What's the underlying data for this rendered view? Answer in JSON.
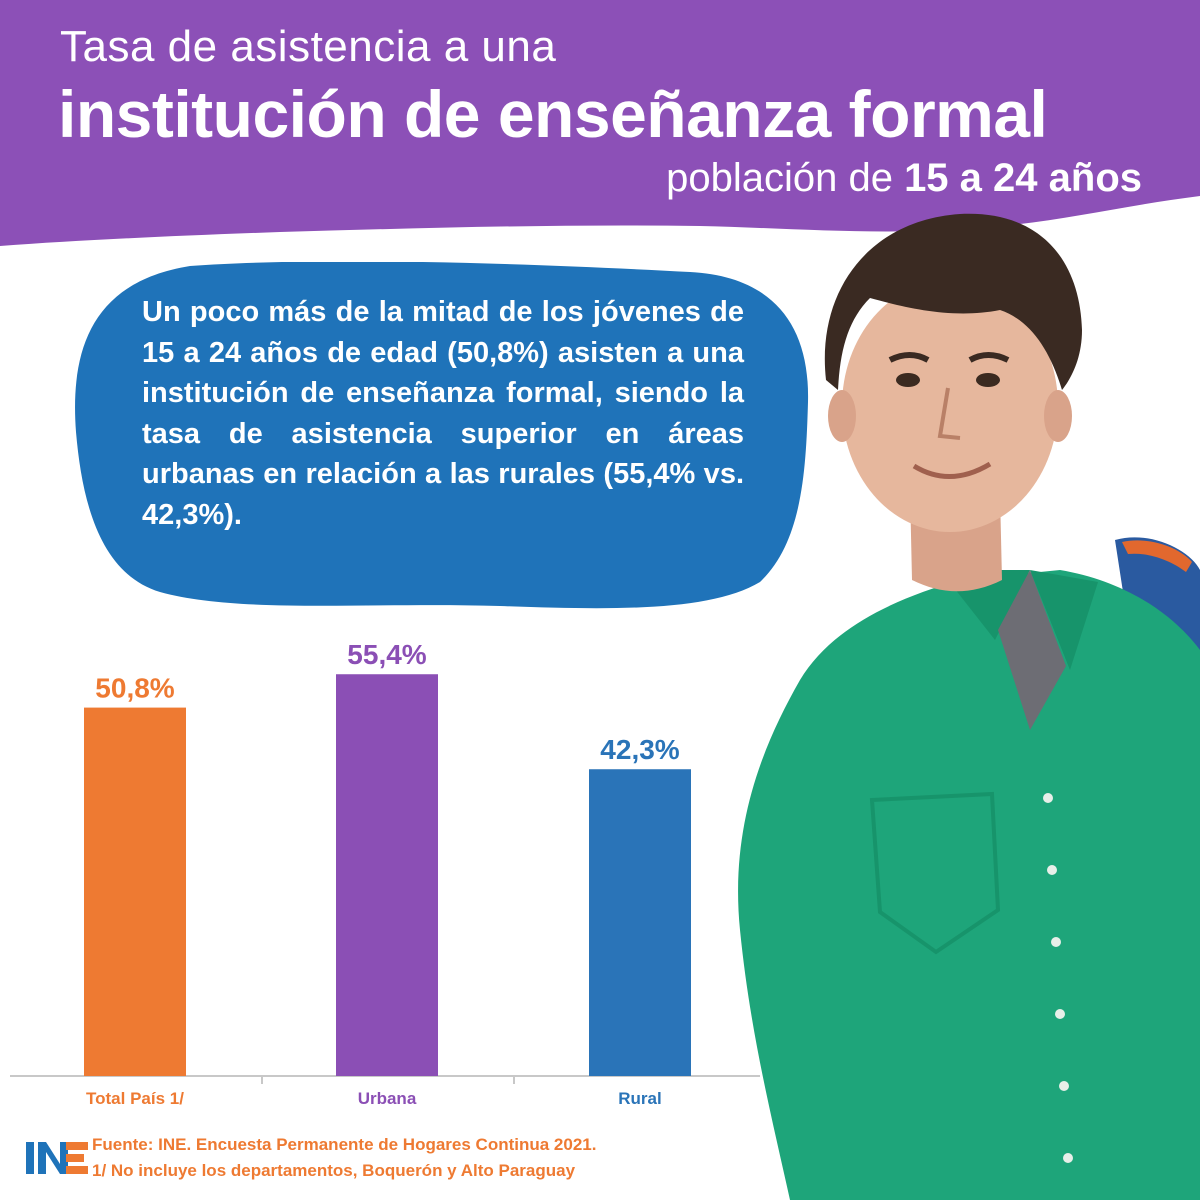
{
  "header": {
    "line1": "Tasa de asistencia a una",
    "line2": "institución de enseñanza formal",
    "line3_prefix": "población de ",
    "line3_bold": "15 a 24 años"
  },
  "summary": {
    "text": "Un poco más de la mitad de los jóvenes de 15 a 24 años de edad (50,8%) asisten a una institución de enseñanza formal, siendo la tasa de asistencia superior en áreas urbanas en relación a las rurales (55,4% vs. 42,3%)."
  },
  "chart_data": {
    "type": "bar",
    "categories": [
      "Total País 1/",
      "Urbana",
      "Rural"
    ],
    "values": [
      50.8,
      55.4,
      42.3
    ],
    "value_labels": [
      "50,8%",
      "55,4%",
      "42,3%"
    ],
    "colors": [
      "#ee7a32",
      "#8b4fb5",
      "#2a74b8"
    ],
    "ylim": [
      0,
      60
    ],
    "grid": false,
    "legend": "none"
  },
  "footer": {
    "source_line1": "Fuente: INE. Encuesta Permanente de Hogares Continua 2021.",
    "source_line2": "1/ No incluye los departamentos, Boquerón y Alto Paraguay",
    "logo_text": "INE"
  },
  "colors": {
    "header_purple": "#8c50b7",
    "bubble_blue": "#1f73b9",
    "shirt_green": "#1ea57a"
  }
}
